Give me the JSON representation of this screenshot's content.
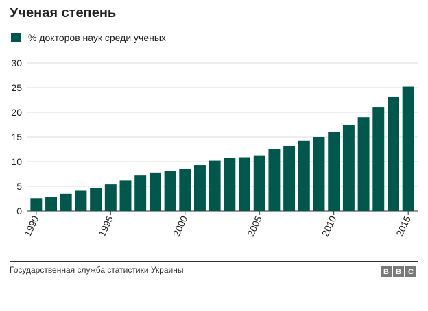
{
  "header": {
    "title": "Ученая степень"
  },
  "legend": {
    "label": "% докторов наук среди ученых"
  },
  "colors": {
    "bar": "#00584c",
    "grid": "#dddddd",
    "axis": "#333333",
    "text": "#222222"
  },
  "footer": {
    "source": "Государственная служба статистики Украины",
    "logo": [
      "B",
      "B",
      "C"
    ]
  },
  "chart_data": {
    "type": "bar",
    "title": "Ученая степень",
    "xlabel": "",
    "ylabel": "",
    "ylim": [
      0,
      30
    ],
    "yticks": [
      0,
      5,
      10,
      15,
      20,
      25,
      30
    ],
    "grid": true,
    "legend_position": "top-left",
    "categories": [
      "1990",
      "1991",
      "1992",
      "1993",
      "1994",
      "1995",
      "1996",
      "1997",
      "1998",
      "1999",
      "2000",
      "2001",
      "2002",
      "2003",
      "2004",
      "2005",
      "2006",
      "2007",
      "2008",
      "2009",
      "2010",
      "2011",
      "2012",
      "2013",
      "2014",
      "2015"
    ],
    "xtick_labels": [
      "1990",
      "1995",
      "2000",
      "2005",
      "2010",
      "2015"
    ],
    "series": [
      {
        "name": "% докторов наук среди ученых",
        "values": [
          2.6,
          2.8,
          3.5,
          4.1,
          4.6,
          5.4,
          6.2,
          7.2,
          7.8,
          8.1,
          8.6,
          9.3,
          10.2,
          10.7,
          10.9,
          11.3,
          12.5,
          13.2,
          14.2,
          15.0,
          16.0,
          17.5,
          19.0,
          21.1,
          23.2,
          25.2
        ]
      }
    ]
  }
}
